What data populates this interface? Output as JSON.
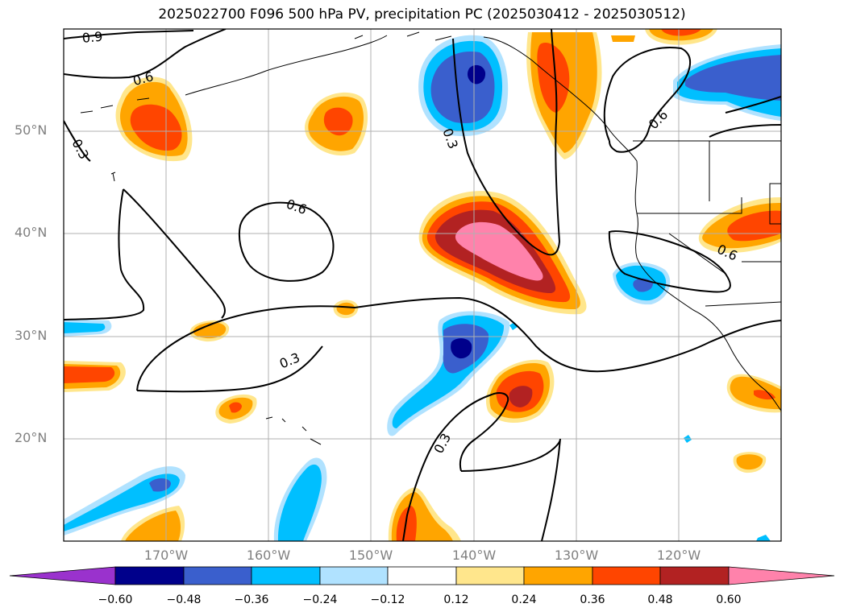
{
  "title": "2025022700 F096 500 hPa PV, precipitation PC (2025030412 - 2025030512)",
  "map": {
    "lon_labels": [
      "170°W",
      "160°W",
      "150°W",
      "140°W",
      "130°W",
      "120°W"
    ],
    "lat_labels": [
      "50°N",
      "40°N",
      "30°N",
      "20°N"
    ],
    "contour_labels": [
      "0.9",
      "0.6",
      "0.3",
      "0.6",
      "0.3",
      "0.3",
      "0.6",
      "0.3",
      "0.6"
    ]
  },
  "colorbar": {
    "ticks": [
      "−0.60",
      "−0.48",
      "−0.36",
      "−0.24",
      "−0.12",
      "0.12",
      "0.24",
      "0.36",
      "0.48",
      "0.60"
    ],
    "colors": [
      "#9a32cd",
      "#00008b",
      "#3a5fcd",
      "#00bfff",
      "#b0e2ff",
      "#ffffff",
      "#ffe68c",
      "#ffa500",
      "#ff4500",
      "#b22222",
      "#ff82ab"
    ]
  },
  "colors": {
    "grid": "#b0b0b0",
    "tick_text": "#808080",
    "contour": "#000000"
  }
}
